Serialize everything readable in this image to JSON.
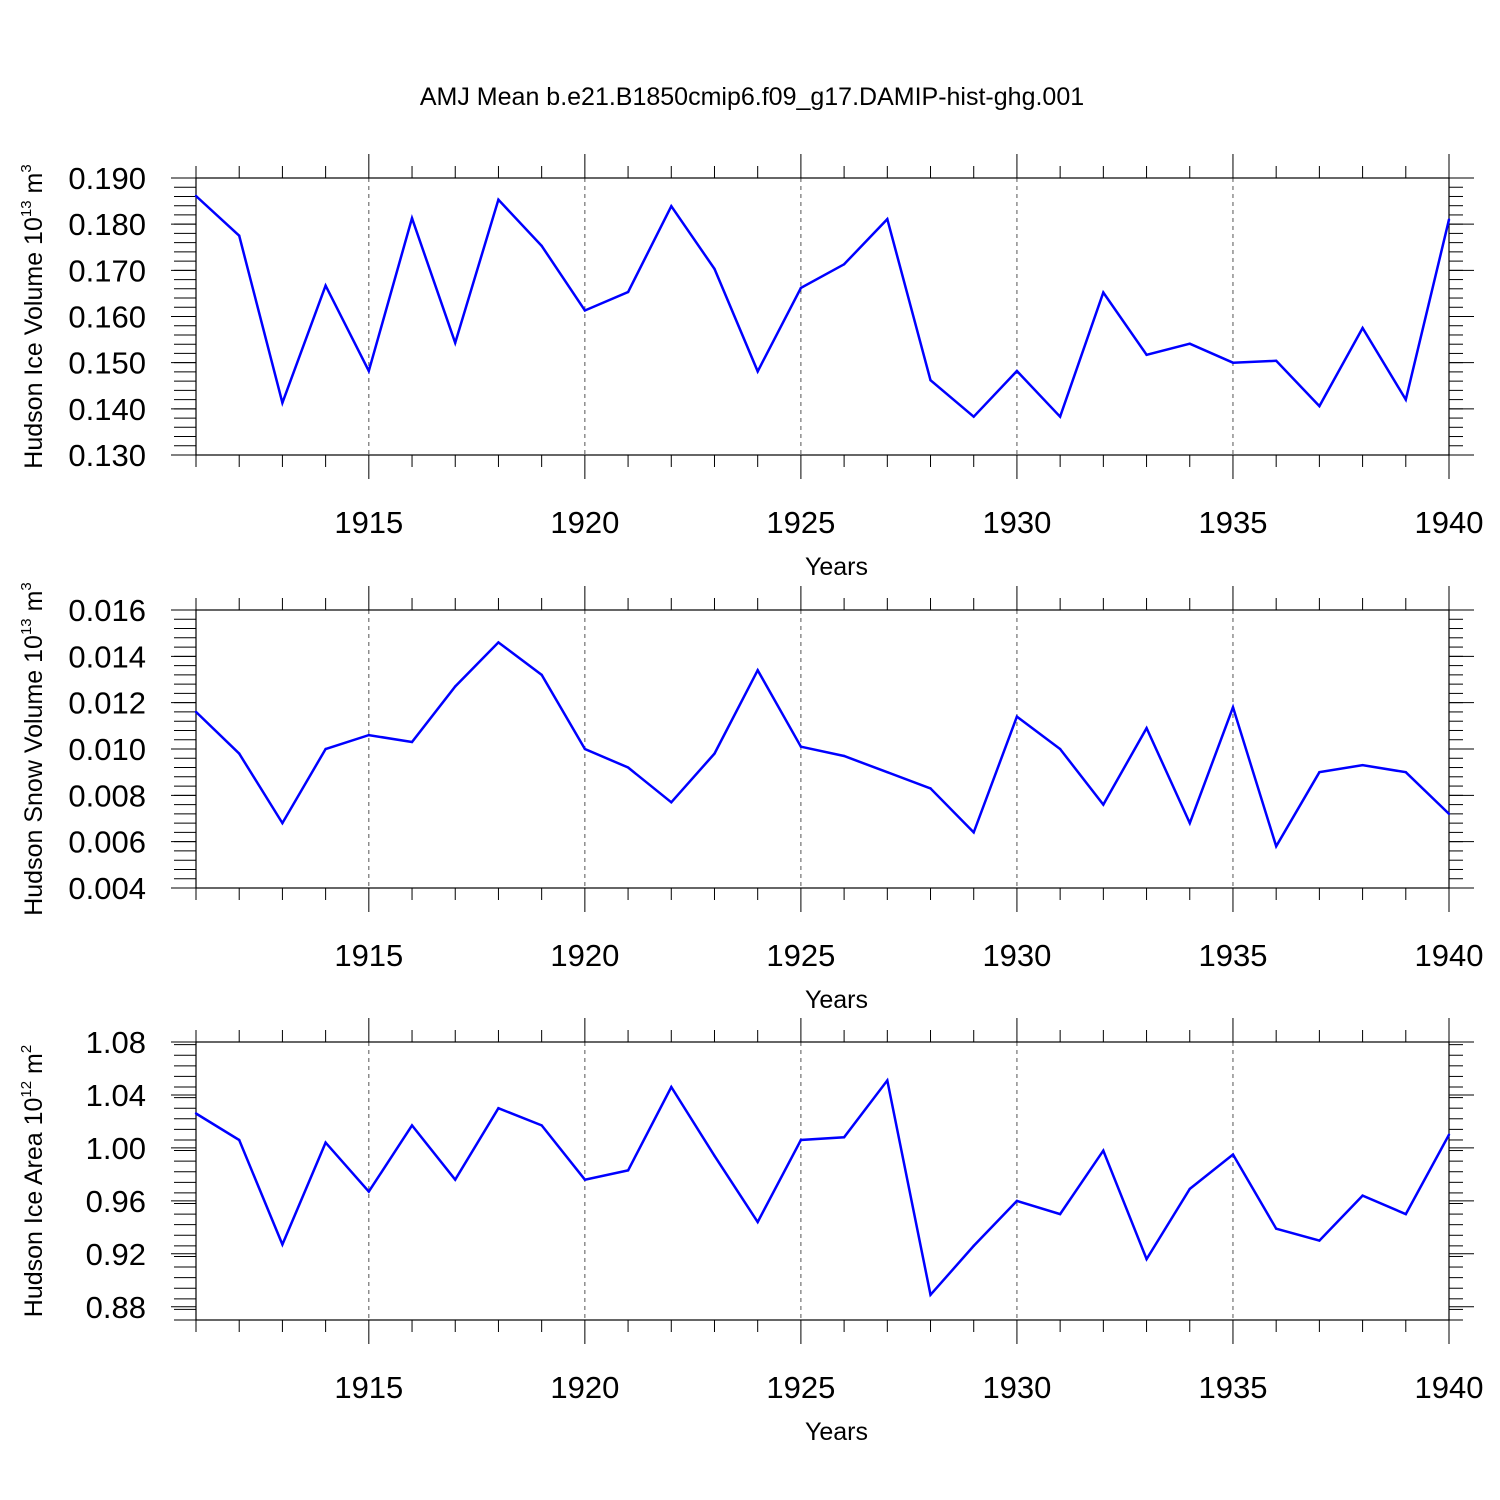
{
  "title": "AMJ Mean b.e21.B1850cmip6.f09_g17.DAMIP-hist-ghg.001",
  "chart_data": [
    {
      "type": "line",
      "ylabel_text": "Hudson Ice Volume 10",
      "ylabel_exp": "13",
      "ylabel_unit": "m",
      "ylabel_unit_exp": "3",
      "xlabel": "Years",
      "xlim": [
        1911,
        1940
      ],
      "ylim": [
        0.13,
        0.19
      ],
      "x_ticks": [
        1915,
        1920,
        1925,
        1930,
        1935,
        1940
      ],
      "y_ticks": [
        "0.130",
        "0.140",
        "0.150",
        "0.160",
        "0.170",
        "0.180",
        "0.190"
      ],
      "y_tick_values": [
        0.13,
        0.14,
        0.15,
        0.16,
        0.17,
        0.18,
        0.19
      ],
      "y_minor_step": 0.002,
      "grid": "vertical dashed at major x ticks",
      "color": "#0000ff",
      "x": [
        1911,
        1912,
        1913,
        1914,
        1915,
        1916,
        1917,
        1918,
        1919,
        1920,
        1921,
        1922,
        1923,
        1924,
        1925,
        1926,
        1927,
        1928,
        1929,
        1930,
        1931,
        1932,
        1933,
        1934,
        1935,
        1936,
        1937,
        1938,
        1939,
        1940
      ],
      "values": [
        0.1861,
        0.1775,
        0.1413,
        0.1667,
        0.1482,
        0.1813,
        0.1543,
        0.1853,
        0.1753,
        0.1613,
        0.1653,
        0.1839,
        0.1703,
        0.1481,
        0.1662,
        0.1713,
        0.1811,
        0.1462,
        0.1383,
        0.1482,
        0.1383,
        0.1652,
        0.1517,
        0.1541,
        0.15,
        0.1504,
        0.1406,
        0.1575,
        0.142,
        0.181
      ]
    },
    {
      "type": "line",
      "ylabel_text": "Hudson Snow Volume 10",
      "ylabel_exp": "13",
      "ylabel_unit": "m",
      "ylabel_unit_exp": "3",
      "xlabel": "Years",
      "xlim": [
        1911,
        1940
      ],
      "ylim": [
        0.004,
        0.016
      ],
      "x_ticks": [
        1915,
        1920,
        1925,
        1930,
        1935,
        1940
      ],
      "y_ticks": [
        "0.004",
        "0.006",
        "0.008",
        "0.010",
        "0.012",
        "0.014",
        "0.016"
      ],
      "y_tick_values": [
        0.004,
        0.006,
        0.008,
        0.01,
        0.012,
        0.014,
        0.016
      ],
      "y_minor_step": 0.0004,
      "grid": "vertical dashed at major x ticks",
      "color": "#0000ff",
      "x": [
        1911,
        1912,
        1913,
        1914,
        1915,
        1916,
        1917,
        1918,
        1919,
        1920,
        1921,
        1922,
        1923,
        1924,
        1925,
        1926,
        1927,
        1928,
        1929,
        1930,
        1931,
        1932,
        1933,
        1934,
        1935,
        1936,
        1937,
        1938,
        1939,
        1940
      ],
      "values": [
        0.0116,
        0.0098,
        0.0068,
        0.01,
        0.0106,
        0.0103,
        0.0127,
        0.0146,
        0.0132,
        0.01,
        0.0092,
        0.0077,
        0.0098,
        0.0134,
        0.0101,
        0.0097,
        0.009,
        0.0083,
        0.0064,
        0.0114,
        0.01,
        0.0076,
        0.0109,
        0.0068,
        0.0118,
        0.0058,
        0.009,
        0.0093,
        0.009,
        0.0072
      ]
    },
    {
      "type": "line",
      "ylabel_text": "Hudson Ice Area 10",
      "ylabel_exp": "12",
      "ylabel_unit": "m",
      "ylabel_unit_exp": "2",
      "xlabel": "Years",
      "xlim": [
        1911,
        1940
      ],
      "ylim": [
        0.87,
        1.08
      ],
      "x_ticks": [
        1915,
        1920,
        1925,
        1930,
        1935,
        1940
      ],
      "y_ticks": [
        "0.88",
        "0.92",
        "0.96",
        "1.00",
        "1.04",
        "1.08"
      ],
      "y_tick_values": [
        0.88,
        0.92,
        0.96,
        1.0,
        1.04,
        1.08
      ],
      "y_minor_step": 0.008,
      "grid": "vertical dashed at major x ticks",
      "color": "#0000ff",
      "x": [
        1911,
        1912,
        1913,
        1914,
        1915,
        1916,
        1917,
        1918,
        1919,
        1920,
        1921,
        1922,
        1923,
        1924,
        1925,
        1926,
        1927,
        1928,
        1929,
        1930,
        1931,
        1932,
        1933,
        1934,
        1935,
        1936,
        1937,
        1938,
        1939,
        1940
      ],
      "values": [
        1.026,
        1.006,
        0.927,
        1.004,
        0.967,
        1.017,
        0.976,
        1.03,
        1.017,
        0.976,
        0.983,
        1.046,
        0.994,
        0.944,
        1.006,
        1.008,
        1.051,
        0.889,
        0.926,
        0.96,
        0.95,
        0.998,
        0.916,
        0.969,
        0.995,
        0.939,
        0.93,
        0.964,
        0.95,
        1.01
      ]
    }
  ]
}
